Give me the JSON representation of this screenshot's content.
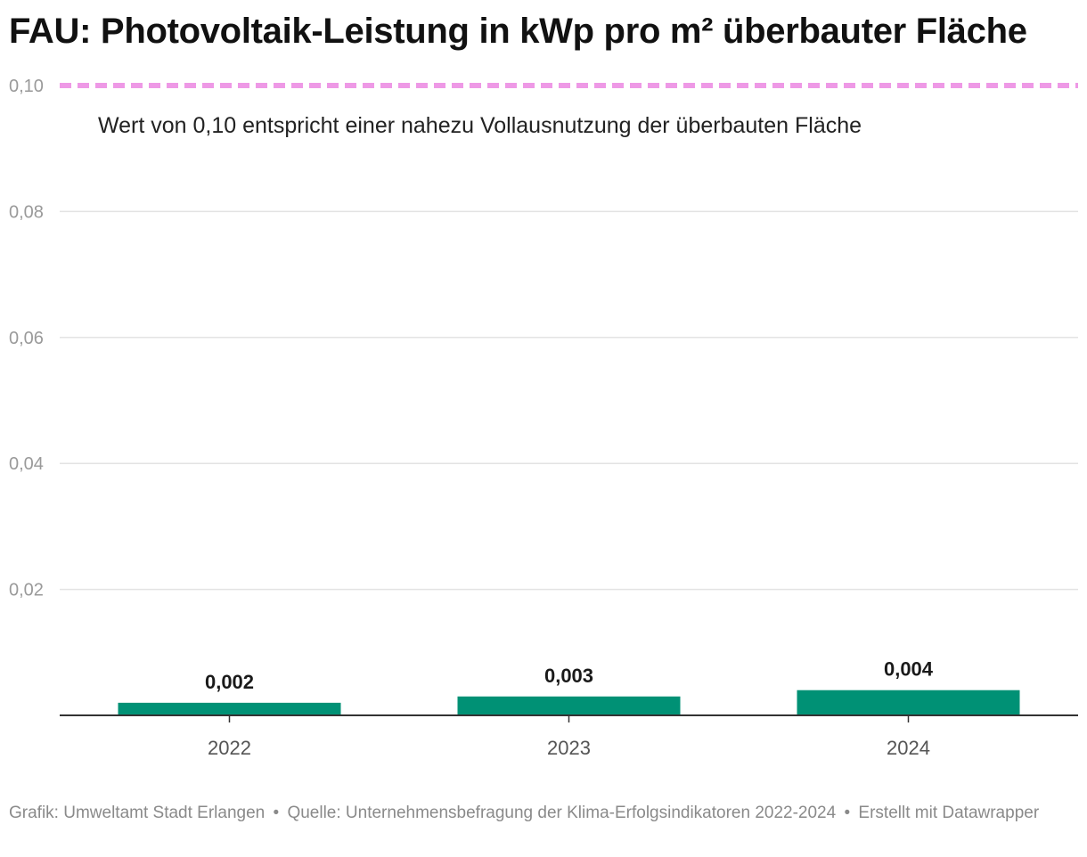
{
  "title": "FAU: Photovoltaik-Leistung in kWp pro m² überbauter Fläche",
  "chart_data": {
    "type": "bar",
    "categories": [
      "2022",
      "2023",
      "2024"
    ],
    "values": [
      0.002,
      0.003,
      0.004
    ],
    "value_labels": [
      "0,002",
      "0,003",
      "0,004"
    ],
    "y_ticks": [
      0.02,
      0.04,
      0.06,
      0.08,
      0.1
    ],
    "y_tick_labels": [
      "0,02",
      "0,04",
      "0,06",
      "0,08",
      "0,10"
    ],
    "ylim": [
      0,
      0.1
    ],
    "grid": true,
    "bar_color": "#009175",
    "reference_line": {
      "value": 0.1,
      "color": "#ee99e6",
      "style": "dashed",
      "annotation": "Wert von 0,10 entspricht einer nahezu Vollausnutzung der überbauten Fläche"
    }
  },
  "footer": {
    "graphic": "Grafik: Umweltamt Stadt Erlangen",
    "separator": "•",
    "source": "Quelle: Unternehmensbefragung der Klima-Erfolgsindikatoren 2022-2024",
    "tool": "Erstellt mit Datawrapper"
  }
}
